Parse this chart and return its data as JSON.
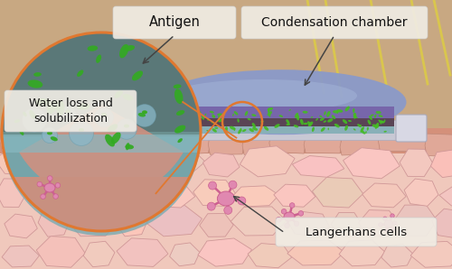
{
  "fig_width": 5.0,
  "fig_height": 2.98,
  "dpi": 100,
  "bg_beige": "#c8a882",
  "skin_pink_light": "#f0ccc0",
  "skin_pink_mid": "#e8b8a8",
  "cell_fill": "#f2ccc4",
  "cell_outline": "#d8a098",
  "zoom_circle_color": "#e07830",
  "zoom_bg_dark": "#5a7878",
  "zoom_bg_teal": "#7aaab0",
  "antigen_green": "#44aa22",
  "bubble_color": "#a8d8d8",
  "patch_blue_dome": "#8899cc",
  "patch_blue_inner": "#6677bb",
  "patch_purple": "#8866aa",
  "patch_teal_layer": "#88aab8",
  "patch_white": "#d8d8e0",
  "patch_dark_layer": "#5a4455",
  "langerhans_pink": "#e088b0",
  "langerhans_dark": "#cc6090",
  "yellow_line": "#ddcc44",
  "anno_color": "#444444",
  "label_antigen": "Antigen",
  "label_condensation": "Condensation chamber",
  "label_water": "Water loss and\nsolubilization",
  "label_langerhans": "Langerhans cells",
  "text_bg": "#f0ece4"
}
